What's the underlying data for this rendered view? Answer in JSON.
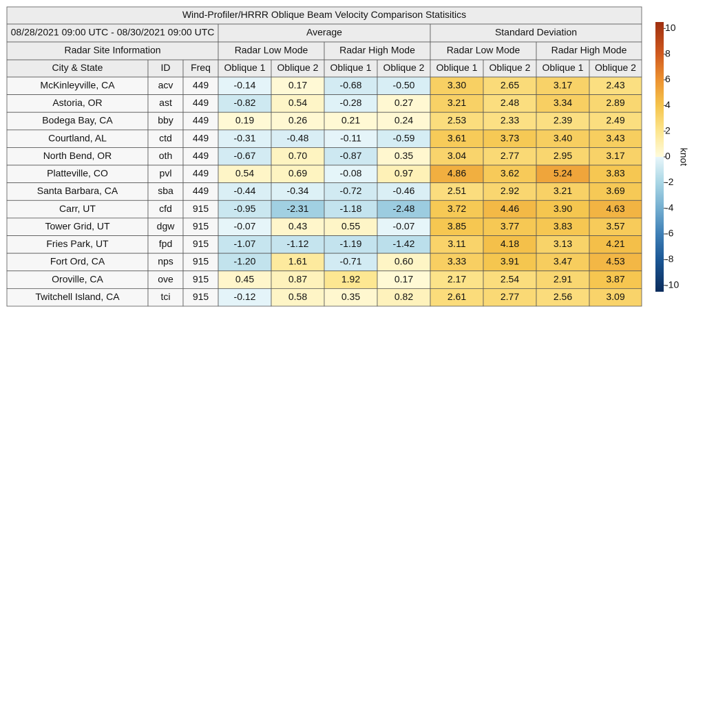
{
  "title": "Wind-Profiler/HRRR Oblique Beam Velocity Comparison Statisitics",
  "header": {
    "period": "08/28/2021 09:00 UTC - 08/30/2021 09:00 UTC",
    "average": "Average",
    "std": "Standard Deviation",
    "site_info": "Radar Site Information",
    "modes": [
      "Radar Low Mode",
      "Radar High Mode",
      "Radar Low Mode",
      "Radar High Mode"
    ],
    "columns": [
      "City & State",
      "ID",
      "Freq",
      "Oblique 1",
      "Oblique 2",
      "Oblique 1",
      "Oblique 2",
      "Oblique 1",
      "Oblique 2",
      "Oblique 1",
      "Oblique 2"
    ]
  },
  "rows": [
    [
      "McKinleyville, CA",
      "acv",
      "449",
      "-0.14",
      "0.17",
      "-0.68",
      "-0.50",
      "3.30",
      "2.65",
      "3.17",
      "2.43"
    ],
    [
      "Astoria, OR",
      "ast",
      "449",
      "-0.82",
      "0.54",
      "-0.28",
      "0.27",
      "3.21",
      "2.48",
      "3.34",
      "2.89"
    ],
    [
      "Bodega Bay, CA",
      "bby",
      "449",
      "0.19",
      "0.26",
      "0.21",
      "0.24",
      "2.53",
      "2.33",
      "2.39",
      "2.49"
    ],
    [
      "Courtland, AL",
      "ctd",
      "449",
      "-0.31",
      "-0.48",
      "-0.11",
      "-0.59",
      "3.61",
      "3.73",
      "3.40",
      "3.43"
    ],
    [
      "North Bend, OR",
      "oth",
      "449",
      "-0.67",
      "0.70",
      "-0.87",
      "0.35",
      "3.04",
      "2.77",
      "2.95",
      "3.17"
    ],
    [
      "Platteville, CO",
      "pvl",
      "449",
      "0.54",
      "0.69",
      "-0.08",
      "0.97",
      "4.86",
      "3.62",
      "5.24",
      "3.83"
    ],
    [
      "Santa Barbara, CA",
      "sba",
      "449",
      "-0.44",
      "-0.34",
      "-0.72",
      "-0.46",
      "2.51",
      "2.92",
      "3.21",
      "3.69"
    ],
    [
      "Carr, UT",
      "cfd",
      "915",
      "-0.95",
      "-2.31",
      "-1.18",
      "-2.48",
      "3.72",
      "4.46",
      "3.90",
      "4.63"
    ],
    [
      "Tower Grid, UT",
      "dgw",
      "915",
      "-0.07",
      "0.43",
      "0.55",
      "-0.07",
      "3.85",
      "3.77",
      "3.83",
      "3.57"
    ],
    [
      "Fries Park, UT",
      "fpd",
      "915",
      "-1.07",
      "-1.12",
      "-1.19",
      "-1.42",
      "3.11",
      "4.18",
      "3.13",
      "4.21"
    ],
    [
      "Fort Ord, CA",
      "nps",
      "915",
      "-1.20",
      "1.61",
      "-0.71",
      "0.60",
      "3.33",
      "3.91",
      "3.47",
      "4.53"
    ],
    [
      "Oroville, CA",
      "ove",
      "915",
      "0.45",
      "0.87",
      "1.92",
      "0.17",
      "2.17",
      "2.54",
      "2.91",
      "3.87"
    ],
    [
      "Twitchell Island, CA",
      "tci",
      "915",
      "-0.12",
      "0.58",
      "0.35",
      "0.82",
      "2.61",
      "2.77",
      "2.56",
      "3.09"
    ]
  ],
  "colorbar": {
    "label": "knot",
    "lim": [
      -10.5,
      10.5
    ],
    "ticks": [
      10,
      8,
      6,
      4,
      2,
      0,
      -2,
      -4,
      -6,
      -8,
      -10
    ]
  }
}
